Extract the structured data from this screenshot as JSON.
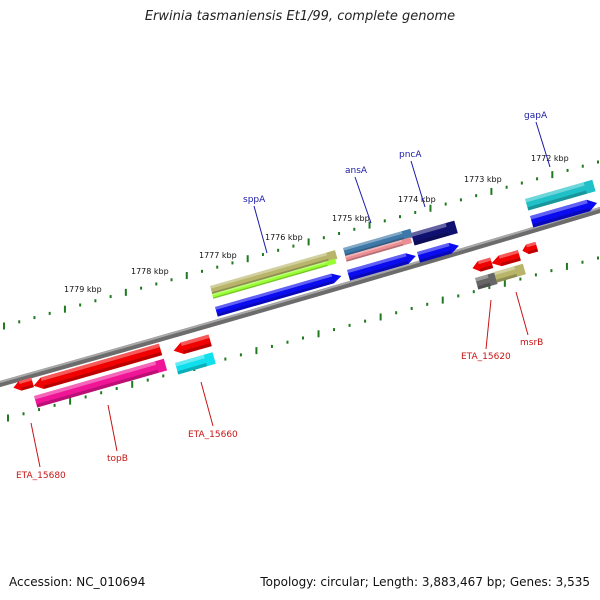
{
  "title": "Erwinia tasmaniensis Et1/99, complete genome",
  "footer": {
    "accession": "Accession: NC_010694",
    "summary": "Topology: circular; Length: 3,883,467 bp; Genes: 3,535"
  },
  "colors": {
    "backbone": "#888888",
    "ticks": "#1f7a1f",
    "top_label": "#1a1aa8",
    "bottom_label": "#c81414"
  },
  "kbp_labels": [
    "1779 kbp",
    "1778 kbp",
    "1777 kbp",
    "1776 kbp",
    "1775 kbp",
    "1774 kbp",
    "1773 kbp",
    "1772 kbp"
  ],
  "gene_labels_top": [
    "sppA",
    "ansA",
    "pncA",
    "gapA"
  ],
  "gene_labels_bottom": [
    "ETA_15680",
    "topB",
    "ETA_15660",
    "ETA_15620",
    "msrB"
  ]
}
